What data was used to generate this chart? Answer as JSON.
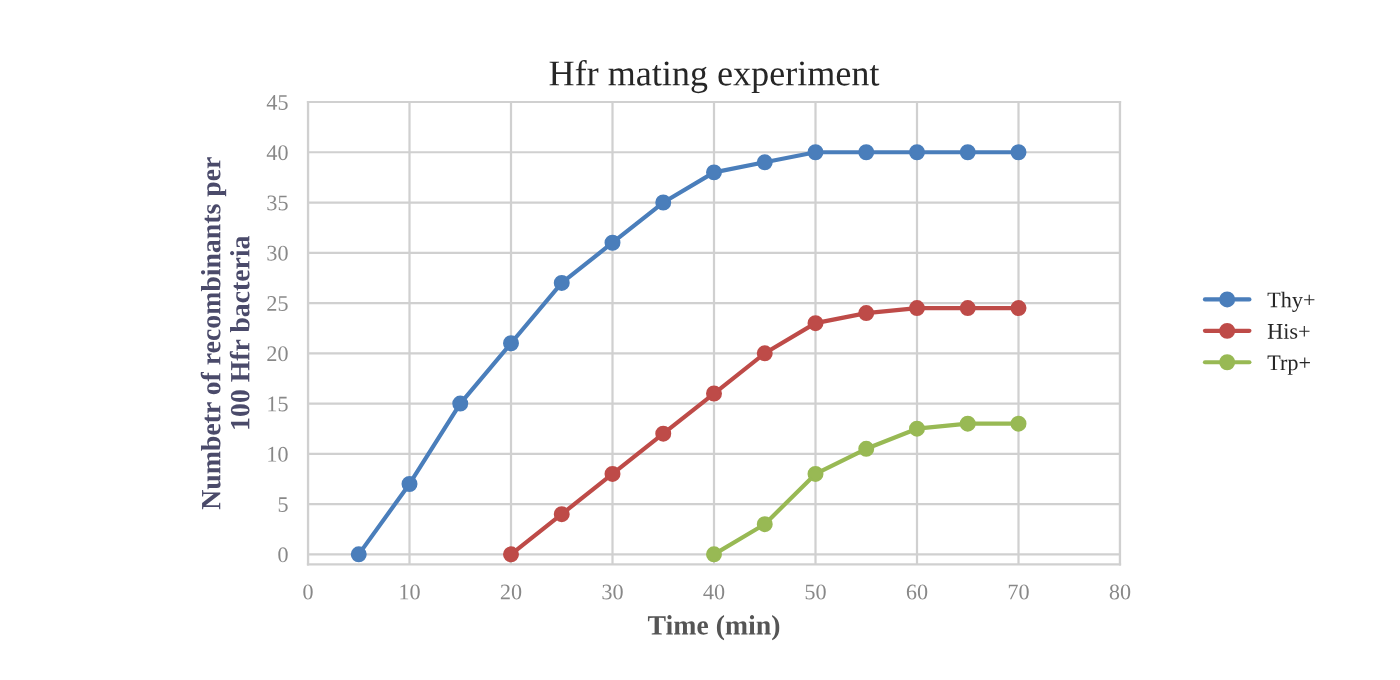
{
  "chart_data": {
    "type": "line",
    "title": "Hfr mating experiment",
    "xlabel": "Time (min)",
    "ylabel": "Numbetr of recombinants per\n100 Hfr bacteria",
    "series": [
      {
        "name": "Thy+",
        "color": "#4a7ebb",
        "x": [
          5,
          10,
          15,
          20,
          25,
          30,
          35,
          40,
          45,
          50,
          55,
          60,
          65,
          70
        ],
        "values": [
          0,
          7,
          15,
          21,
          27,
          31,
          35,
          38,
          39,
          40,
          40,
          40,
          40,
          40
        ]
      },
      {
        "name": "His+",
        "color": "#be4b48",
        "x": [
          20,
          25,
          30,
          35,
          40,
          45,
          50,
          55,
          60,
          65,
          70
        ],
        "values": [
          0,
          4,
          8,
          12,
          16,
          20,
          23,
          24,
          24.5,
          24.5,
          24.5
        ]
      },
      {
        "name": "Trp+",
        "color": "#98b954",
        "x": [
          40,
          45,
          50,
          55,
          60,
          65,
          70
        ],
        "values": [
          0,
          3,
          8,
          10.5,
          12.5,
          13,
          13
        ]
      }
    ],
    "xlim": [
      0,
      80
    ],
    "xticks": [
      0,
      10,
      20,
      30,
      40,
      50,
      60,
      70,
      80
    ],
    "ylim": [
      -1,
      45
    ],
    "yticks": [
      0,
      5,
      10,
      15,
      20,
      25,
      30,
      35,
      40,
      45
    ],
    "grid": true,
    "legend": "right",
    "marker": "circle",
    "line_style": "solid"
  }
}
